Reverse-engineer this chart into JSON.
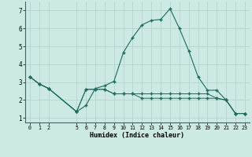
{
  "xlabel": "Humidex (Indice chaleur)",
  "background_color": "#cce9e4",
  "line_color": "#1a6b5e",
  "grid_color": "#b0d0ca",
  "series1_x": [
    0,
    1,
    2,
    5,
    6,
    7,
    8,
    9,
    10,
    11,
    12,
    13,
    14,
    15,
    16,
    17,
    18,
    19,
    20,
    21,
    22,
    23
  ],
  "series1_y": [
    3.3,
    2.9,
    2.65,
    1.35,
    1.7,
    2.65,
    2.8,
    3.05,
    4.65,
    5.5,
    6.2,
    6.45,
    6.5,
    7.1,
    6.0,
    4.75,
    3.3,
    2.55,
    2.55,
    2.0,
    1.25,
    1.25
  ],
  "series2_x": [
    0,
    1,
    2,
    5,
    6,
    7,
    8,
    9,
    10,
    11,
    12,
    13,
    14,
    15,
    16,
    17,
    18,
    19,
    20,
    21,
    22,
    23
  ],
  "series2_y": [
    3.3,
    2.9,
    2.65,
    1.35,
    2.6,
    2.6,
    2.6,
    2.35,
    2.35,
    2.35,
    2.35,
    2.35,
    2.35,
    2.35,
    2.35,
    2.35,
    2.35,
    2.35,
    2.1,
    2.0,
    1.25,
    1.25
  ],
  "series3_x": [
    0,
    1,
    2,
    5,
    6,
    7,
    8,
    9,
    10,
    11,
    12,
    13,
    14,
    15,
    16,
    17,
    18,
    19,
    20,
    21,
    22,
    23
  ],
  "series3_y": [
    3.3,
    2.9,
    2.65,
    1.35,
    2.6,
    2.6,
    2.6,
    2.35,
    2.35,
    2.35,
    2.1,
    2.1,
    2.1,
    2.1,
    2.1,
    2.1,
    2.1,
    2.1,
    2.1,
    2.0,
    1.25,
    1.25
  ],
  "xticks": [
    0,
    1,
    2,
    5,
    6,
    7,
    8,
    9,
    10,
    11,
    12,
    13,
    14,
    15,
    16,
    17,
    18,
    19,
    20,
    21,
    22,
    23
  ],
  "yticks": [
    1,
    2,
    3,
    4,
    5,
    6,
    7
  ],
  "ylim": [
    0.75,
    7.5
  ],
  "xlim": [
    -0.5,
    23.5
  ]
}
